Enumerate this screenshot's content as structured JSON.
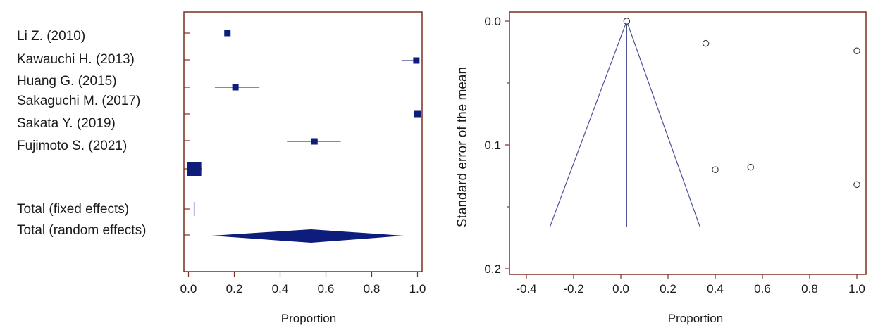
{
  "chart_data": [
    {
      "type": "forest",
      "xlabel": "Proportion",
      "xlim": [
        -0.02,
        1.02
      ],
      "xticks": [
        "0.0",
        "0.2",
        "0.4",
        "0.6",
        "0.8",
        "1.0"
      ],
      "studies": [
        {
          "label": "Li Z. (2010)",
          "estimate": 0.17,
          "ci_low": 0.17,
          "ci_high": 0.17
        },
        {
          "label": "Kawauchi H. (2013)",
          "estimate": 0.995,
          "ci_low": 0.93,
          "ci_high": 1.0
        },
        {
          "label": "Huang G. (2015)",
          "estimate": 0.205,
          "ci_low": 0.115,
          "ci_high": 0.31
        },
        {
          "label": "Sakaguchi M. (2017)",
          "estimate": 0.025,
          "ci_low": 0.0,
          "ci_high": 0.06
        },
        {
          "label": "Sakata Y. (2019)",
          "estimate": 1.0,
          "ci_low": 1.0,
          "ci_high": 1.0
        },
        {
          "label": "Fujimoto S. (2021)",
          "estimate": 0.55,
          "ci_low": 0.43,
          "ci_high": 0.665
        }
      ],
      "totals": [
        {
          "label": "Total (fixed effects)",
          "estimate": 0.025,
          "ci_low": 0.02,
          "ci_high": 0.03
        },
        {
          "label": "Total (random effects)",
          "estimate": 0.535,
          "ci_low": 0.1,
          "ci_high": 0.94
        }
      ],
      "colors": {
        "marker": "#0e1c7c",
        "frame": "#7a2e22",
        "line": "#3a3f8c"
      }
    },
    {
      "type": "scatter",
      "xlabel": "Proportion",
      "ylabel": "Standard error of the mean",
      "xlim": [
        -0.45,
        1.05
      ],
      "ylim": [
        0.2,
        -0.01
      ],
      "xticks": [
        "-0.4",
        "-0.2",
        "0.0",
        "0.2",
        "0.4",
        "0.6",
        "0.8",
        "1.0"
      ],
      "yticks": [
        "0.0",
        "0.1",
        "0.2"
      ],
      "points": [
        {
          "x": 0.025,
          "y": 0.0
        },
        {
          "x": 0.36,
          "y": 0.018
        },
        {
          "x": 1.0,
          "y": 0.024
        },
        {
          "x": 0.4,
          "y": 0.12
        },
        {
          "x": 0.55,
          "y": 0.118
        },
        {
          "x": 1.0,
          "y": 0.132
        }
      ],
      "funnel": {
        "center": 0.025,
        "se_max": 0.166,
        "left_x": -0.3,
        "right_x": 0.335
      },
      "colors": {
        "frame": "#7a2e22",
        "line": "#4b5196",
        "point": "#333333"
      }
    }
  ]
}
